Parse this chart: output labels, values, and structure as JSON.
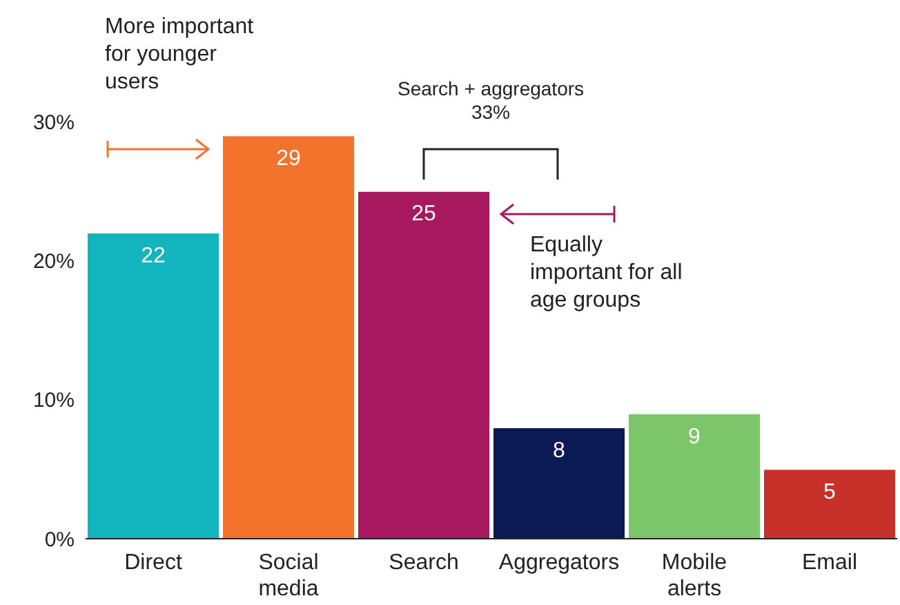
{
  "chart_data": {
    "type": "bar",
    "categories": [
      "Direct",
      "Social media",
      "Search",
      "Aggregators",
      "Mobile alerts",
      "Email"
    ],
    "values": [
      22,
      29,
      25,
      8,
      9,
      5
    ],
    "colors": [
      "#12b5be",
      "#f3722c",
      "#a8185f",
      "#0b1a55",
      "#7dc56a",
      "#c8302a"
    ],
    "ylim": [
      0,
      30
    ],
    "yticks": [
      {
        "value": 0,
        "label": "0%"
      },
      {
        "value": 10,
        "label": "10%"
      },
      {
        "value": 20,
        "label": "20%"
      },
      {
        "value": 30,
        "label": "30%"
      }
    ],
    "data_labels": true,
    "annotations": [
      "More important for younger users",
      "Search + aggregators\n33%",
      "Equally important for all age groups"
    ]
  }
}
